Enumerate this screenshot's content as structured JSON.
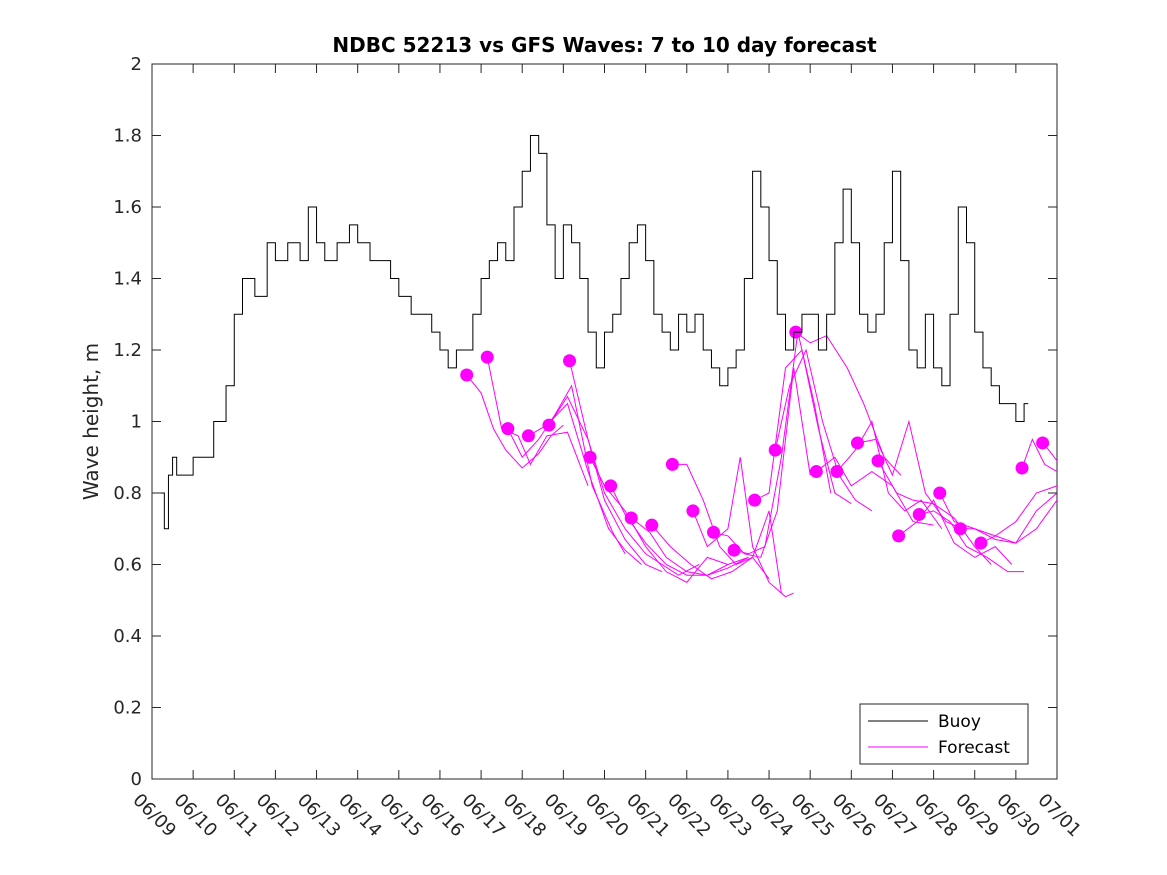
{
  "chart_data": {
    "type": "line",
    "title": "NDBC 52213 vs GFS Waves: 7 to 10 day forecast",
    "xlabel": "",
    "ylabel": "Wave height, m",
    "ylim": [
      0,
      2
    ],
    "xlim": [
      "06/09",
      "07/01"
    ],
    "x_ticks": [
      "06/09",
      "06/10",
      "06/11",
      "06/12",
      "06/13",
      "06/14",
      "06/15",
      "06/16",
      "06/17",
      "06/18",
      "06/19",
      "06/20",
      "06/21",
      "06/22",
      "06/23",
      "06/24",
      "06/25",
      "06/26",
      "06/27",
      "06/28",
      "06/29",
      "06/30",
      "07/01"
    ],
    "y_ticks": [
      "0",
      "0.2",
      "0.4",
      "0.6",
      "0.8",
      "1",
      "1.2",
      "1.4",
      "1.6",
      "1.8",
      "2"
    ],
    "grid": false,
    "legend": {
      "position": "bottom-right",
      "entries": [
        "Buoy",
        "Forecast"
      ]
    },
    "colors": {
      "buoy": "#000000",
      "forecast": "#ff00ff"
    },
    "buoy_series": {
      "name": "Buoy",
      "x_day": [
        0,
        0.2,
        0.3,
        0.4,
        0.5,
        0.6,
        0.8,
        1.0,
        1.2,
        1.5,
        1.8,
        2.0,
        2.2,
        2.5,
        2.8,
        3.0,
        3.3,
        3.6,
        3.8,
        4.0,
        4.2,
        4.5,
        4.8,
        5.0,
        5.3,
        5.6,
        5.8,
        6.0,
        6.3,
        6.6,
        6.8,
        7.0,
        7.2,
        7.4,
        7.6,
        7.8,
        8.0,
        8.2,
        8.4,
        8.6,
        8.8,
        9.0,
        9.2,
        9.4,
        9.6,
        9.8,
        10.0,
        10.2,
        10.4,
        10.6,
        10.8,
        11.0,
        11.2,
        11.4,
        11.6,
        11.8,
        12.0,
        12.2,
        12.4,
        12.6,
        12.8,
        13.0,
        13.2,
        13.4,
        13.6,
        13.8,
        14.0,
        14.2,
        14.4,
        14.6,
        14.8,
        15.0,
        15.2,
        15.4,
        15.6,
        15.8,
        16.0,
        16.2,
        16.4,
        16.6,
        16.8,
        17.0,
        17.2,
        17.4,
        17.6,
        17.8,
        18.0,
        18.2,
        18.4,
        18.6,
        18.8,
        19.0,
        19.2,
        19.4,
        19.6,
        19.8,
        20.0,
        20.2,
        20.4,
        20.6,
        20.8,
        21.0,
        21.2
      ],
      "values": [
        0.8,
        0.8,
        0.7,
        0.85,
        0.9,
        0.85,
        0.85,
        0.9,
        0.9,
        1.0,
        1.1,
        1.3,
        1.4,
        1.35,
        1.5,
        1.45,
        1.5,
        1.45,
        1.6,
        1.5,
        1.45,
        1.5,
        1.55,
        1.5,
        1.45,
        1.45,
        1.4,
        1.35,
        1.3,
        1.3,
        1.25,
        1.2,
        1.15,
        1.2,
        1.2,
        1.3,
        1.4,
        1.45,
        1.5,
        1.45,
        1.6,
        1.7,
        1.8,
        1.75,
        1.55,
        1.4,
        1.55,
        1.5,
        1.4,
        1.25,
        1.15,
        1.25,
        1.3,
        1.4,
        1.5,
        1.55,
        1.45,
        1.3,
        1.25,
        1.2,
        1.3,
        1.25,
        1.3,
        1.2,
        1.15,
        1.1,
        1.15,
        1.2,
        1.4,
        1.7,
        1.6,
        1.45,
        1.3,
        1.2,
        1.25,
        1.3,
        1.3,
        1.2,
        1.3,
        1.5,
        1.65,
        1.5,
        1.3,
        1.25,
        1.3,
        1.5,
        1.7,
        1.45,
        1.2,
        1.15,
        1.3,
        1.15,
        1.1,
        1.3,
        1.6,
        1.5,
        1.25,
        1.15,
        1.1,
        1.05,
        1.05,
        1.0,
        1.05
      ]
    },
    "forecast_series": [
      {
        "x_day": [
          7.65,
          8.0,
          8.3,
          8.6,
          9.0,
          9.4,
          9.7,
          10.0
        ],
        "values": [
          1.13,
          1.08,
          0.98,
          0.92,
          0.87,
          0.91,
          0.96,
          0.99
        ]
      },
      {
        "x_day": [
          8.15,
          8.5,
          8.9,
          9.2,
          9.6,
          10.1,
          10.4,
          10.6
        ],
        "values": [
          1.18,
          0.98,
          0.96,
          0.88,
          0.96,
          0.97,
          0.88,
          0.82
        ]
      },
      {
        "x_day": [
          8.65,
          9.0,
          9.4,
          9.8,
          10.2,
          10.7,
          11.2,
          11.5
        ],
        "values": [
          0.98,
          0.9,
          0.95,
          1.02,
          1.1,
          0.82,
          0.69,
          0.63
        ]
      },
      {
        "x_day": [
          9.15,
          9.6,
          10.1,
          10.6,
          11.1,
          11.5,
          11.9
        ],
        "values": [
          0.96,
          0.99,
          1.05,
          0.86,
          0.7,
          0.64,
          0.6
        ]
      },
      {
        "x_day": [
          9.65,
          10.1,
          10.6,
          11.0,
          11.5,
          12.0,
          12.4
        ],
        "values": [
          0.99,
          1.07,
          0.95,
          0.78,
          0.67,
          0.6,
          0.58
        ]
      },
      {
        "x_day": [
          10.15,
          10.6,
          11.0,
          11.5,
          12.0,
          12.4,
          12.8,
          13.3
        ],
        "values": [
          1.17,
          0.95,
          0.8,
          0.7,
          0.63,
          0.6,
          0.57,
          0.6
        ]
      },
      {
        "x_day": [
          10.65,
          11.0,
          11.5,
          12.0,
          12.5,
          13.0,
          13.5,
          14.0
        ],
        "values": [
          0.9,
          0.82,
          0.75,
          0.65,
          0.58,
          0.55,
          0.62,
          0.6
        ]
      },
      {
        "x_day": [
          11.15,
          11.5,
          12.0,
          12.5,
          13.0,
          13.5,
          14.0,
          14.5
        ],
        "values": [
          0.82,
          0.74,
          0.66,
          0.6,
          0.57,
          0.57,
          0.6,
          0.62
        ]
      },
      {
        "x_day": [
          11.65,
          12.1,
          12.5,
          13.0,
          13.5,
          14.0,
          14.5
        ],
        "values": [
          0.73,
          0.69,
          0.62,
          0.58,
          0.57,
          0.59,
          0.62
        ]
      },
      {
        "x_day": [
          12.15,
          12.6,
          13.1,
          13.6,
          14.1,
          14.6,
          15.0
        ],
        "values": [
          0.71,
          0.65,
          0.6,
          0.56,
          0.58,
          0.62,
          0.56
        ]
      },
      {
        "x_day": [
          12.65,
          13.0,
          13.4,
          13.8,
          14.2,
          14.6,
          15.0,
          15.3
        ],
        "values": [
          0.88,
          0.88,
          0.78,
          0.65,
          0.6,
          0.62,
          0.75,
          0.52
        ]
      },
      {
        "x_day": [
          13.15,
          13.5,
          14.0,
          14.3,
          14.6,
          15.0,
          15.4,
          15.6
        ],
        "values": [
          0.75,
          0.65,
          0.7,
          0.9,
          0.65,
          0.55,
          0.51,
          0.52
        ]
      },
      {
        "x_day": [
          13.65,
          14.0,
          14.4,
          14.8,
          15.2,
          15.6,
          16.0
        ],
        "values": [
          0.69,
          0.68,
          0.63,
          0.62,
          0.75,
          1.15,
          0.85
        ]
      },
      {
        "x_day": [
          14.15,
          14.5,
          14.9,
          15.3,
          15.7,
          16.1,
          16.5
        ],
        "values": [
          0.64,
          0.63,
          0.65,
          0.9,
          1.25,
          1.05,
          0.8
        ]
      },
      {
        "x_day": [
          14.65,
          15.0,
          15.4,
          15.8,
          16.2,
          16.6,
          17.0
        ],
        "values": [
          0.78,
          0.8,
          1.15,
          1.2,
          0.98,
          0.8,
          0.77
        ]
      },
      {
        "x_day": [
          15.15,
          15.5,
          15.9,
          16.3,
          16.7,
          17.1,
          17.5
        ],
        "values": [
          0.92,
          1.1,
          1.2,
          1.0,
          0.85,
          0.78,
          0.75
        ]
      },
      {
        "x_day": [
          15.65,
          16.0,
          16.4,
          16.9,
          17.3,
          17.8,
          18.2
        ],
        "values": [
          1.25,
          1.22,
          1.24,
          1.15,
          1.05,
          0.9,
          0.85
        ]
      },
      {
        "x_day": [
          16.15,
          16.6,
          17.0,
          17.5,
          18.0,
          18.5,
          19.0
        ],
        "values": [
          0.86,
          0.9,
          0.82,
          0.86,
          0.82,
          0.72,
          0.71
        ]
      },
      {
        "x_day": [
          16.65,
          17.1,
          17.5,
          17.9,
          18.3,
          18.7,
          19.2
        ],
        "values": [
          0.86,
          0.92,
          1.0,
          0.8,
          0.75,
          0.78,
          0.7
        ]
      },
      {
        "x_day": [
          17.15,
          17.6,
          18.0,
          18.4,
          18.8,
          19.3,
          19.7
        ],
        "values": [
          0.94,
          0.95,
          0.85,
          1.0,
          0.8,
          0.72,
          0.7
        ]
      },
      {
        "x_day": [
          17.65,
          18.1,
          18.5,
          19.0,
          19.5,
          20.0,
          20.4
        ],
        "values": [
          0.89,
          0.8,
          0.78,
          0.77,
          0.73,
          0.65,
          0.6
        ]
      },
      {
        "x_day": [
          18.15,
          18.6,
          19.0,
          19.5,
          20.0,
          20.5,
          20.9
        ],
        "values": [
          0.68,
          0.72,
          0.78,
          0.66,
          0.62,
          0.65,
          0.6
        ]
      },
      {
        "x_day": [
          18.65,
          19.0,
          19.4,
          19.8,
          20.3,
          20.8,
          21.2
        ],
        "values": [
          0.74,
          0.75,
          0.72,
          0.65,
          0.62,
          0.58,
          0.58
        ]
      },
      {
        "x_day": [
          19.15,
          19.5,
          20.0,
          20.5,
          21.0,
          21.5,
          22.0
        ],
        "values": [
          0.8,
          0.72,
          0.7,
          0.67,
          0.66,
          0.7,
          0.78
        ]
      },
      {
        "x_day": [
          19.65,
          20.0,
          20.5,
          21.0,
          21.5,
          22.0
        ],
        "values": [
          0.7,
          0.7,
          0.68,
          0.66,
          0.75,
          0.8
        ]
      },
      {
        "x_day": [
          20.15,
          20.5,
          21.0,
          21.5,
          22.0
        ],
        "values": [
          0.66,
          0.68,
          0.72,
          0.8,
          0.82
        ]
      },
      {
        "x_day": [
          21.15,
          21.4,
          21.7,
          22.0
        ],
        "values": [
          0.87,
          0.95,
          0.88,
          0.86
        ]
      },
      {
        "x_day": [
          21.65,
          21.8,
          22.0
        ],
        "values": [
          0.94,
          0.92,
          0.89
        ]
      }
    ]
  }
}
